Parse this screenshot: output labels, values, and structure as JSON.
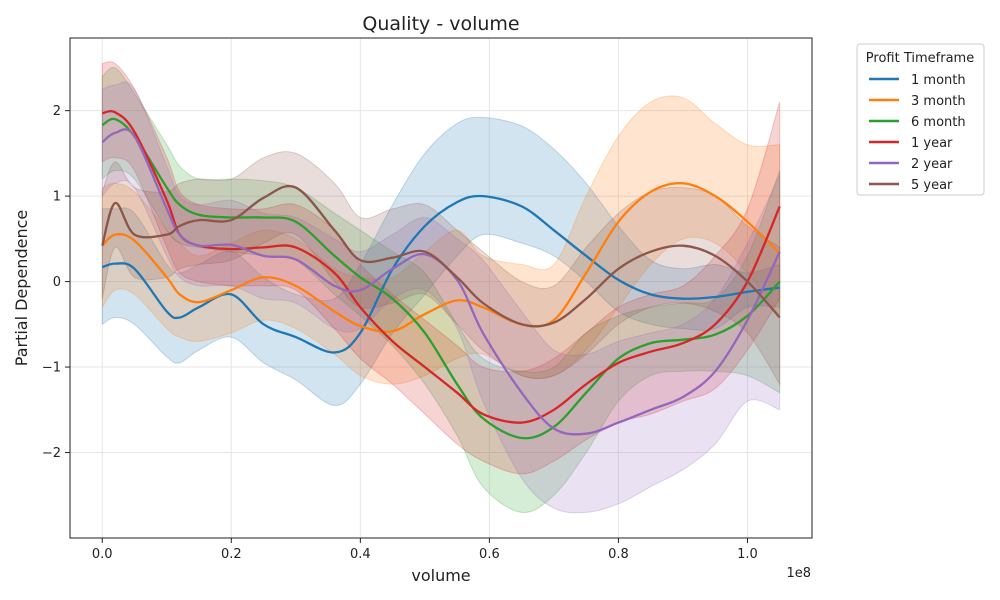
{
  "chart_data": {
    "type": "line",
    "title": "Quality - volume",
    "xlabel": "volume",
    "ylabel": "Partial Dependence",
    "x_scale_label": "1e8",
    "x_scale": 100000000,
    "xlim": [
      -5000000,
      110000000
    ],
    "ylim": [
      -3.0,
      2.85
    ],
    "x_ticks": [
      0,
      20000000,
      40000000,
      60000000,
      80000000,
      100000000
    ],
    "x_tick_labels": [
      "0.0",
      "0.2",
      "0.4",
      "0.6",
      "0.8",
      "1.0"
    ],
    "y_ticks": [
      -2,
      -1,
      0,
      1,
      2
    ],
    "y_tick_labels": [
      "−2",
      "−1",
      "0",
      "1",
      "2"
    ],
    "grid": true,
    "legend": {
      "title": "Profit Timeframe",
      "placement": "outside-right"
    },
    "x": [
      0,
      2000000,
      5000000,
      10000000,
      12000000,
      15000000,
      20000000,
      25000000,
      30000000,
      36000000,
      40000000,
      45000000,
      50000000,
      55000000,
      59000000,
      65000000,
      70000000,
      75000000,
      80000000,
      85000000,
      90000000,
      95000000,
      100000000,
      105000000
    ],
    "series": [
      {
        "name": "1 month",
        "color": "#1f77b4",
        "values": [
          0.17,
          0.21,
          0.15,
          -0.35,
          -0.42,
          -0.3,
          -0.15,
          -0.5,
          -0.65,
          -0.83,
          -0.6,
          0.15,
          0.65,
          0.93,
          1.0,
          0.88,
          0.6,
          0.3,
          0.02,
          -0.15,
          -0.2,
          -0.18,
          -0.12,
          -0.07
        ],
        "lower": [
          -0.5,
          -0.42,
          -0.5,
          -0.88,
          -0.95,
          -0.8,
          -0.65,
          -0.95,
          -1.15,
          -1.45,
          -1.2,
          -0.6,
          -0.15,
          0.3,
          0.55,
          0.45,
          0.3,
          0.0,
          -0.35,
          -0.5,
          -0.55,
          -0.55,
          -0.3,
          -0.3
        ],
        "upper": [
          0.85,
          0.85,
          0.8,
          0.2,
          0.1,
          0.2,
          0.35,
          0.05,
          -0.15,
          -0.2,
          0.2,
          0.9,
          1.5,
          1.85,
          1.92,
          1.82,
          1.55,
          1.15,
          0.65,
          0.25,
          0.15,
          0.2,
          0.1,
          0.2
        ]
      },
      {
        "name": "3 month",
        "color": "#ff7f0e",
        "values": [
          0.42,
          0.55,
          0.48,
          0.05,
          -0.15,
          -0.24,
          -0.1,
          0.05,
          -0.05,
          -0.35,
          -0.52,
          -0.58,
          -0.38,
          -0.22,
          -0.3,
          -0.5,
          -0.45,
          0.1,
          0.7,
          1.05,
          1.15,
          1.0,
          0.7,
          0.33
        ],
        "lower": [
          -0.3,
          -0.1,
          -0.15,
          -0.55,
          -0.65,
          -0.7,
          -0.6,
          -0.45,
          -0.55,
          -0.85,
          -1.1,
          -1.2,
          -1.1,
          -0.9,
          -0.85,
          -1.1,
          -1.1,
          -0.8,
          -0.3,
          0.2,
          0.5,
          0.45,
          0.1,
          -0.4
        ],
        "upper": [
          1.1,
          1.15,
          1.05,
          0.6,
          0.45,
          0.3,
          0.45,
          0.6,
          0.5,
          0.15,
          0.05,
          0.05,
          0.35,
          0.6,
          0.3,
          0.2,
          0.2,
          1.0,
          1.7,
          2.1,
          2.15,
          1.85,
          1.6,
          1.6
        ]
      },
      {
        "name": "6 month",
        "color": "#2ca02c",
        "values": [
          1.83,
          1.9,
          1.7,
          1.1,
          0.9,
          0.78,
          0.75,
          0.75,
          0.7,
          0.3,
          0.05,
          -0.2,
          -0.6,
          -1.2,
          -1.6,
          -1.83,
          -1.7,
          -1.3,
          -0.9,
          -0.72,
          -0.68,
          -0.62,
          -0.4,
          0.0
        ],
        "lower": [
          1.2,
          1.3,
          1.2,
          0.6,
          0.45,
          0.4,
          0.35,
          0.3,
          0.25,
          -0.15,
          -0.4,
          -0.75,
          -1.2,
          -1.8,
          -2.4,
          -2.7,
          -2.5,
          -2.0,
          -1.4,
          -1.1,
          -1.05,
          -1.05,
          -1.1,
          -1.3
        ],
        "upper": [
          2.4,
          2.5,
          2.2,
          1.6,
          1.35,
          1.2,
          1.2,
          1.18,
          1.1,
          0.8,
          0.6,
          0.35,
          0.1,
          -0.5,
          -0.9,
          -1.05,
          -1.0,
          -0.6,
          -0.4,
          -0.3,
          -0.25,
          -0.2,
          0.3,
          1.3
        ]
      },
      {
        "name": "1 year",
        "color": "#d62728",
        "values": [
          1.97,
          1.98,
          1.75,
          0.95,
          0.55,
          0.42,
          0.38,
          0.4,
          0.4,
          0.1,
          -0.3,
          -0.7,
          -1.0,
          -1.3,
          -1.55,
          -1.65,
          -1.5,
          -1.2,
          -0.95,
          -0.82,
          -0.72,
          -0.5,
          0.0,
          0.88
        ],
        "lower": [
          1.4,
          1.45,
          1.3,
          0.4,
          0.1,
          0.0,
          -0.05,
          -0.05,
          -0.1,
          -0.55,
          -0.9,
          -1.2,
          -1.55,
          -1.9,
          -2.1,
          -2.25,
          -2.1,
          -1.85,
          -1.65,
          -1.55,
          -1.4,
          -1.25,
          -0.8,
          -0.2
        ],
        "upper": [
          2.55,
          2.55,
          2.25,
          1.45,
          1.05,
          0.9,
          0.85,
          0.85,
          0.9,
          0.6,
          0.2,
          -0.15,
          -0.45,
          -0.75,
          -1.0,
          -1.05,
          -0.9,
          -0.6,
          -0.3,
          -0.15,
          -0.05,
          0.3,
          0.85,
          2.1
        ]
      },
      {
        "name": "2 year",
        "color": "#9467bd",
        "values": [
          1.63,
          1.74,
          1.7,
          0.85,
          0.55,
          0.42,
          0.43,
          0.3,
          0.26,
          -0.05,
          -0.1,
          0.15,
          0.32,
          0.02,
          -0.6,
          -1.3,
          -1.72,
          -1.78,
          -1.65,
          -1.5,
          -1.35,
          -1.05,
          -0.45,
          0.35
        ],
        "lower": [
          1.0,
          1.15,
          1.1,
          0.3,
          0.05,
          -0.05,
          -0.05,
          -0.2,
          -0.25,
          -0.55,
          -0.55,
          -0.2,
          -0.1,
          -0.55,
          -1.4,
          -2.3,
          -2.65,
          -2.7,
          -2.6,
          -2.4,
          -2.2,
          -1.9,
          -1.4,
          -1.5
        ],
        "upper": [
          2.25,
          2.3,
          2.25,
          1.35,
          1.0,
          0.9,
          0.95,
          0.8,
          0.75,
          0.5,
          0.35,
          0.55,
          0.75,
          0.5,
          0.25,
          -0.35,
          -0.8,
          -0.85,
          -0.7,
          -0.6,
          -0.5,
          -0.2,
          0.45,
          1.25
        ]
      },
      {
        "name": "5 year",
        "color": "#8c564b",
        "values": [
          0.42,
          0.92,
          0.55,
          0.55,
          0.65,
          0.72,
          0.72,
          0.98,
          1.1,
          0.6,
          0.25,
          0.28,
          0.35,
          0.05,
          -0.25,
          -0.5,
          -0.48,
          -0.2,
          0.15,
          0.35,
          0.42,
          0.3,
          0.0,
          -0.42
        ],
        "lower": [
          -0.2,
          0.4,
          0.05,
          0.05,
          0.15,
          0.2,
          0.25,
          0.45,
          0.55,
          0.0,
          -0.3,
          -0.25,
          -0.15,
          -0.5,
          -0.8,
          -1.1,
          -1.1,
          -0.85,
          -0.5,
          -0.3,
          -0.25,
          -0.35,
          -0.6,
          -1.2
        ],
        "upper": [
          1.05,
          1.4,
          1.1,
          1.05,
          1.15,
          1.2,
          1.2,
          1.45,
          1.5,
          1.15,
          0.75,
          0.85,
          0.9,
          0.6,
          0.35,
          0.0,
          -0.05,
          0.4,
          0.8,
          1.05,
          1.1,
          1.0,
          0.65,
          0.4
        ]
      }
    ]
  }
}
